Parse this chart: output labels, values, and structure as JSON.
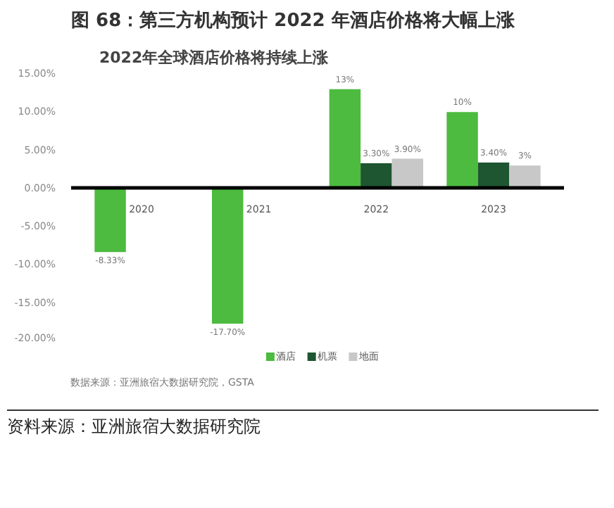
{
  "chart_data": {
    "type": "bar",
    "title": "图 68：第三方机构预计 2022 年酒店价格将大幅上涨",
    "subtitle": "2022年全球酒店价格将持续上涨",
    "categories": [
      "2020",
      "2021",
      "2022",
      "2023"
    ],
    "series": [
      {
        "name": "酒店",
        "color": "#4cbb3f",
        "values": [
          -8.33,
          -17.7,
          13,
          10
        ],
        "value_labels": [
          "-8.33%",
          "-17.70%",
          "13%",
          "10%"
        ]
      },
      {
        "name": "机票",
        "color": "#1e5631",
        "values": [
          null,
          null,
          3.3,
          3.4
        ],
        "value_labels": [
          null,
          null,
          "3.30%",
          "3.40%"
        ]
      },
      {
        "name": "地面",
        "color": "#c8c8c8",
        "values": [
          null,
          null,
          3.9,
          3
        ],
        "value_labels": [
          null,
          null,
          "3.90%",
          "3%"
        ]
      }
    ],
    "ylim": [
      -20,
      15
    ],
    "yticks": [
      {
        "value": -20,
        "label": "-20.00%"
      },
      {
        "value": -15,
        "label": "-15.00%"
      },
      {
        "value": -10,
        "label": "-10.00%"
      },
      {
        "value": -5,
        "label": "-5.00%"
      },
      {
        "value": 0,
        "label": "0.00%"
      },
      {
        "value": 5,
        "label": "5.00%"
      },
      {
        "value": 10,
        "label": "10.00%"
      },
      {
        "value": 15,
        "label": "15.00%"
      }
    ],
    "grid": false,
    "legend": "bottom",
    "annotations": [
      "数据来源：亚洲旅宿大数据研究院，GSTA",
      "资料来源：亚洲旅宿大数据研究院"
    ]
  }
}
